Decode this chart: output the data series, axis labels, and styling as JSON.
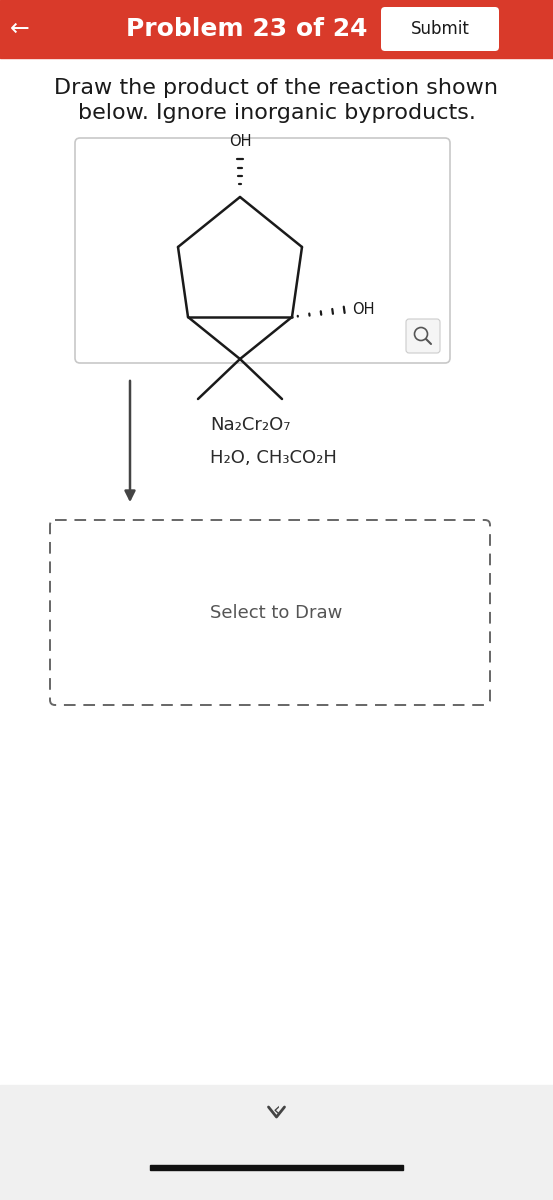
{
  "header_color": "#d93a2a",
  "header_text": "Problem 23 of 24",
  "header_text_color": "#ffffff",
  "header_fontsize": 18,
  "back_arrow": "←",
  "submit_text": "Submit",
  "submit_bg": "#ffffff",
  "submit_text_color": "#1a1a1a",
  "body_bg": "#ffffff",
  "instruction_line1": "Draw the product of the reaction shown",
  "instruction_line2": "below. Ignore inorganic byproducts.",
  "instruction_fontsize": 16,
  "instruction_color": "#1a1a1a",
  "reagent_line1": "Na₂Cr₂O₇",
  "reagent_line2": "H₂O, CH₃CO₂H",
  "reagent_fontsize": 13,
  "reagent_color": "#2a2a2a",
  "select_to_draw": "Select to Draw",
  "select_fontsize": 13,
  "select_color": "#555555",
  "molecule_box_bg": "#ffffff",
  "molecule_box_border": "#c8c8c8",
  "dashed_box_border": "#666666",
  "arrow_color": "#444444",
  "line_color": "#1a1a1a",
  "bottom_bg": "#f0f0f0"
}
